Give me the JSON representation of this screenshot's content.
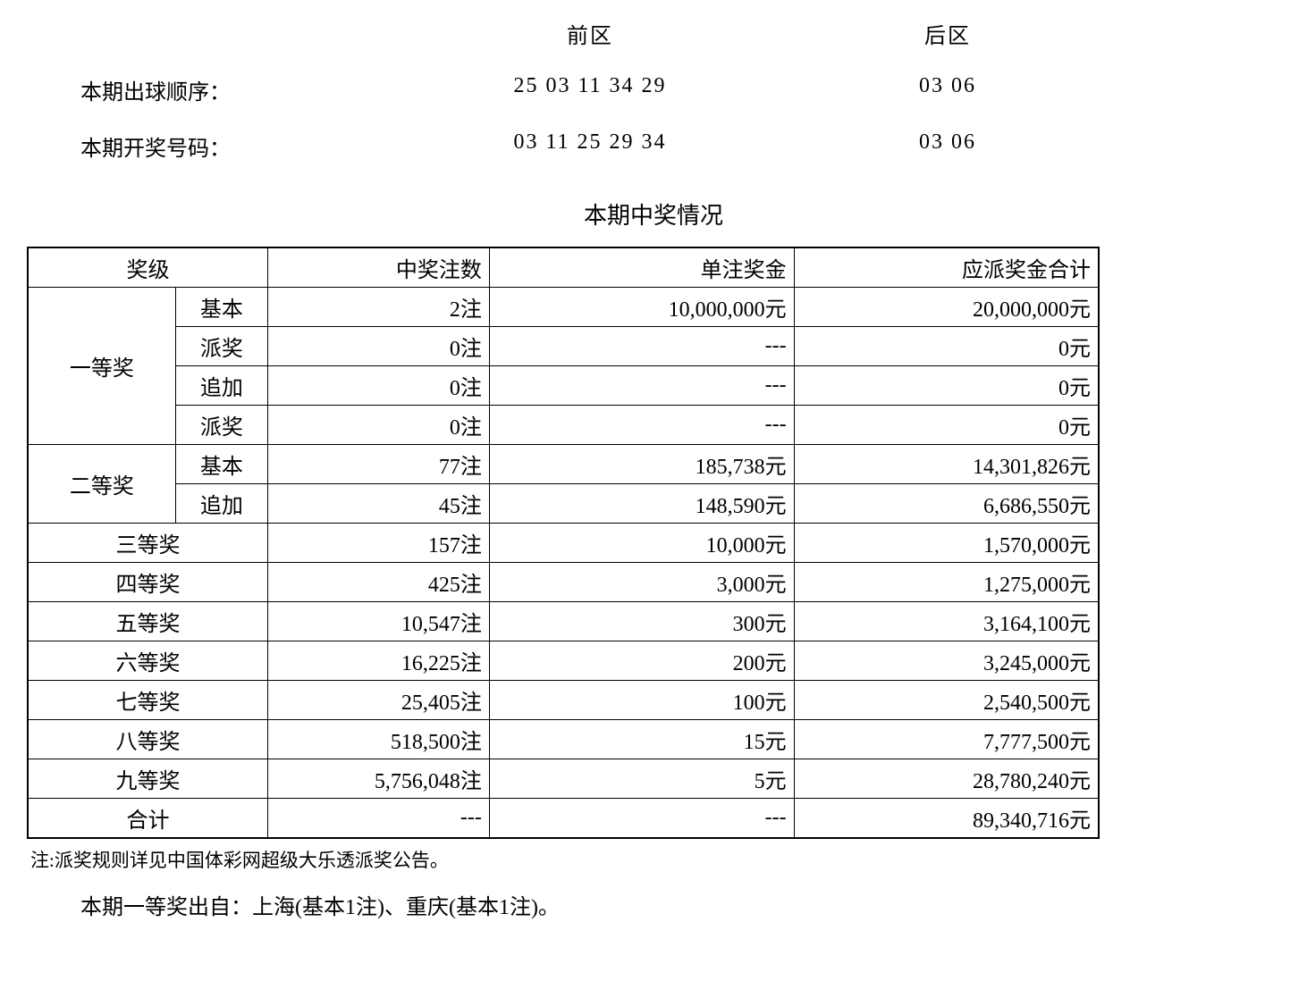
{
  "headers": {
    "front_zone": "前区",
    "back_zone": "后区",
    "draw_order_label": "本期出球顺序：",
    "winning_numbers_label": "本期开奖号码：",
    "section_title": "本期中奖情况"
  },
  "numbers": {
    "draw_order_front": "25 03 11 34 29",
    "draw_order_back": "03 06",
    "winning_front": "03 11 25 29 34",
    "winning_back": "03 06"
  },
  "table": {
    "columns": {
      "level": "奖级",
      "count": "中奖注数",
      "per_prize": "单注奖金",
      "total": "应派奖金合计"
    },
    "groups": [
      {
        "level": "一等奖",
        "subrows": [
          {
            "sub": "基本",
            "count": "2注",
            "prize": "10,000,000元",
            "total": "20,000,000元"
          },
          {
            "sub": "派奖",
            "count": "0注",
            "prize": "---",
            "total": "0元"
          },
          {
            "sub": "追加",
            "count": "0注",
            "prize": "---",
            "total": "0元"
          },
          {
            "sub": "派奖",
            "count": "0注",
            "prize": "---",
            "total": "0元"
          }
        ]
      },
      {
        "level": "二等奖",
        "subrows": [
          {
            "sub": "基本",
            "count": "77注",
            "prize": "185,738元",
            "total": "14,301,826元"
          },
          {
            "sub": "追加",
            "count": "45注",
            "prize": "148,590元",
            "total": "6,686,550元"
          }
        ]
      }
    ],
    "simple_rows": [
      {
        "level": "三等奖",
        "count": "157注",
        "prize": "10,000元",
        "total": "1,570,000元"
      },
      {
        "level": "四等奖",
        "count": "425注",
        "prize": "3,000元",
        "total": "1,275,000元"
      },
      {
        "level": "五等奖",
        "count": "10,547注",
        "prize": "300元",
        "total": "3,164,100元"
      },
      {
        "level": "六等奖",
        "count": "16,225注",
        "prize": "200元",
        "total": "3,245,000元"
      },
      {
        "level": "七等奖",
        "count": "25,405注",
        "prize": "100元",
        "total": "2,540,500元"
      },
      {
        "level": "八等奖",
        "count": "518,500注",
        "prize": "15元",
        "total": "7,777,500元"
      },
      {
        "level": "九等奖",
        "count": "5,756,048注",
        "prize": "5元",
        "total": "28,780,240元"
      }
    ],
    "total_row": {
      "level": "合计",
      "count": "---",
      "prize": "---",
      "total": "89,340,716元"
    }
  },
  "footnote": "注:派奖规则详见中国体彩网超级大乐透派奖公告。",
  "origin": "本期一等奖出自：上海(基本1注)、重庆(基本1注)。"
}
